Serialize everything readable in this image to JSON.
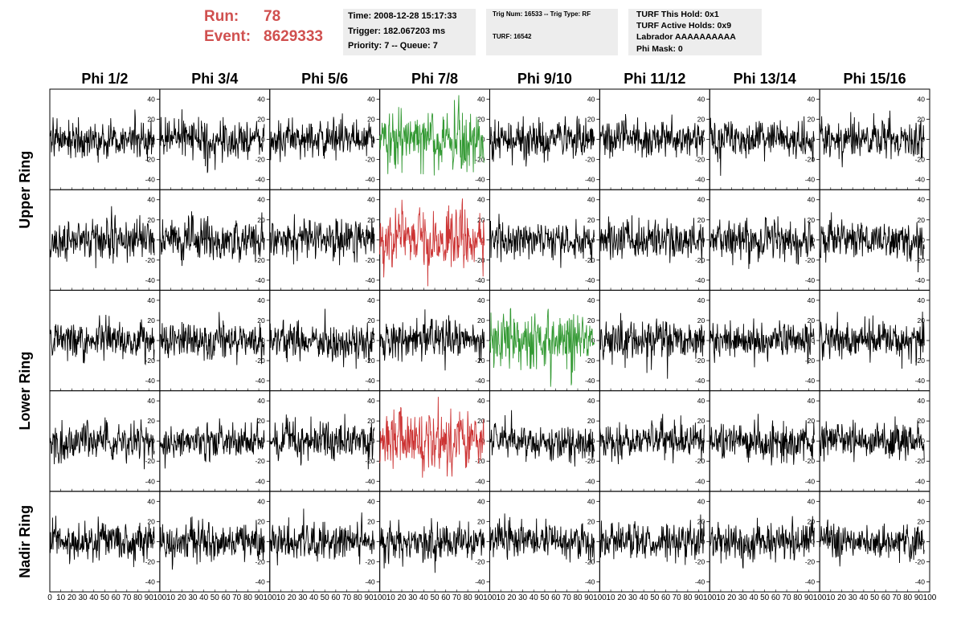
{
  "header": {
    "run_label": "Run:",
    "run_value": "78",
    "event_label": "Event:",
    "event_value": "8629333",
    "time_text": "Time: 2008-12-28 15:17:33",
    "trigger_text": "Trigger: 182.067203 ms",
    "priority_text": "Priority: 7 -- Queue: 7",
    "trig_num_text": "Trig Num: 16533 -- Trig Type: RF",
    "turf_text": "TURF: 16542",
    "turf_hold_text": "TURF This Hold: 0x1",
    "turf_active_text": "TURF Active Holds: 0x9",
    "labrador_text": "Labrador AAAAAAAAAA",
    "phi_mask_text": "Phi Mask: 0"
  },
  "chart_data": {
    "type": "line",
    "columns": [
      "Phi 1/2",
      "Phi 3/4",
      "Phi 5/6",
      "Phi 7/8",
      "Phi 9/10",
      "Phi 11/12",
      "Phi 13/14",
      "Phi 15/16"
    ],
    "rows": [
      "Upper Ring",
      "Upper Ring",
      "Lower Ring",
      "Lower Ring",
      "Nadir Ring"
    ],
    "ring_labels": [
      "Upper Ring",
      "Lower Ring",
      "Nadir Ring"
    ],
    "xlim": [
      0,
      100
    ],
    "ylim": [
      -50,
      50
    ],
    "x_ticks": [
      0,
      10,
      20,
      30,
      40,
      50,
      60,
      70,
      80,
      90,
      100
    ],
    "y_ticks": [
      -40,
      -20,
      0,
      20,
      40
    ],
    "n_samples": 260,
    "colors": {
      "default": "#000000",
      "trigger": "#339933",
      "highlight": "#cc3333"
    },
    "panel_colors": [
      [
        "default",
        "default",
        "default",
        "trigger",
        "default",
        "default",
        "default",
        "default"
      ],
      [
        "default",
        "default",
        "default",
        "highlight",
        "default",
        "default",
        "default",
        "default"
      ],
      [
        "default",
        "default",
        "default",
        "default",
        "trigger",
        "default",
        "default",
        "default"
      ],
      [
        "default",
        "default",
        "default",
        "highlight",
        "default",
        "default",
        "default",
        "default"
      ],
      [
        "default",
        "default",
        "default",
        "default",
        "default",
        "default",
        "default",
        "default"
      ]
    ],
    "waveform_description": "Noise-like voltage waveforms approximately within -45 to +40; values estimated from the appearance of the traces"
  }
}
